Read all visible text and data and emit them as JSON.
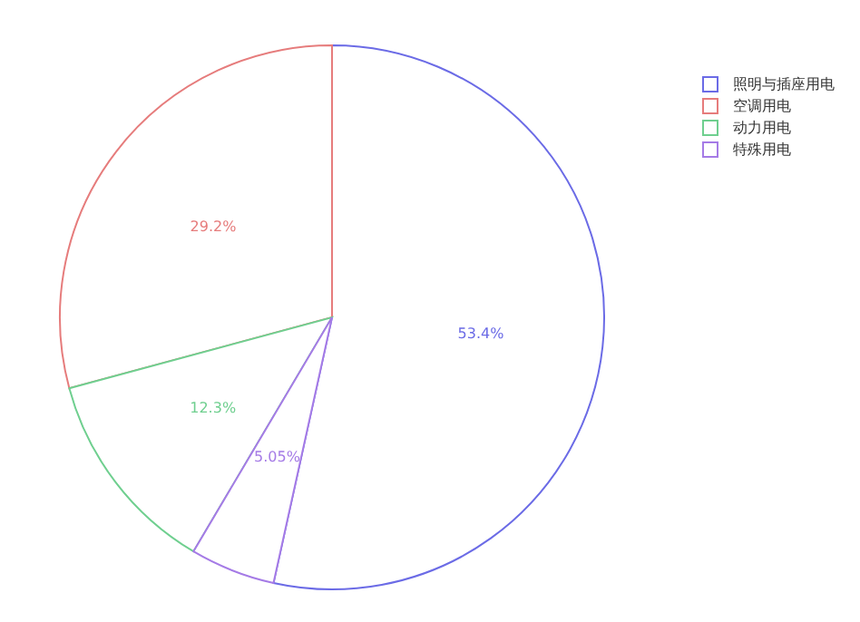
{
  "chart_data": {
    "type": "pie",
    "categories": [
      "照明与插座用电",
      "空调用电",
      "动力用电",
      "特殊用电"
    ],
    "values": [
      53.45,
      29.2,
      12.3,
      5.05
    ],
    "colors": [
      "#6b6be6",
      "#e67c7c",
      "#6fcf8f",
      "#a57be6"
    ],
    "value_labels": [
      "53.4%",
      "29.2%",
      "12.3%",
      "5.05%"
    ],
    "legend": "top right"
  }
}
